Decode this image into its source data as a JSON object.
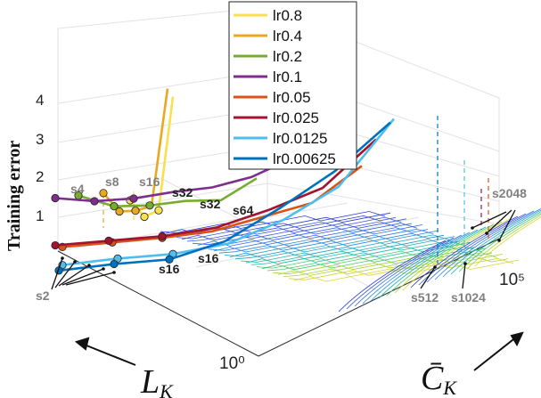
{
  "chart_data": {
    "type": "line",
    "title": "",
    "zlabel": "Training error",
    "xlabel": "L_K",
    "ylabel": "C̄_K",
    "xlabel_main": "L",
    "ylabel_main": "C̄",
    "label_subscript": "K",
    "x_tick_labels": [
      "10⁰"
    ],
    "y_tick_labels": [
      "10⁵"
    ],
    "z_ticks": [
      1,
      2,
      3,
      4
    ],
    "z_tick_labels": [
      "1",
      "2",
      "3",
      "4"
    ],
    "legend_position": "top-center",
    "series": [
      {
        "name": "lr0.8",
        "color": "#f8e04e",
        "values": [
          1.5,
          1.0,
          1.1,
          4.0
        ]
      },
      {
        "name": "lr0.4",
        "color": "#e8a820",
        "values": [
          1.55,
          1.0,
          0.95,
          1.0,
          4.0
        ]
      },
      {
        "name": "lr0.2",
        "color": "#77ac30",
        "values": [
          1.3,
          0.95,
          0.9,
          0.95,
          0.9,
          1.4
        ]
      },
      {
        "name": "lr0.1",
        "color": "#7e2f8e",
        "values": [
          1.0,
          0.85,
          0.85,
          0.95,
          1.0,
          1.2,
          1.6
        ]
      },
      {
        "name": "lr0.05",
        "color": "#d95319",
        "values": [
          0.7,
          0.75,
          0.8,
          0.9,
          1.2,
          1.5,
          2.4
        ]
      },
      {
        "name": "lr0.025",
        "color": "#a2142f",
        "values": [
          0.65,
          0.7,
          0.75,
          0.9,
          1.3,
          1.8,
          3.0
        ]
      },
      {
        "name": "lr0.0125",
        "color": "#4dbeee",
        "values": [
          0.6,
          0.7,
          0.75,
          0.95,
          1.5,
          2.3,
          4.0
        ]
      },
      {
        "name": "lr0.00625",
        "color": "#0072bd",
        "values": [
          0.55,
          0.65,
          0.7,
          1.1,
          1.9,
          2.8,
          4.0
        ]
      }
    ],
    "annotations": [
      "s2",
      "s4",
      "s8",
      "s16",
      "s32",
      "s32",
      "s64",
      "s16",
      "s16",
      "s512",
      "s1024",
      "s2048"
    ],
    "grid": true
  }
}
